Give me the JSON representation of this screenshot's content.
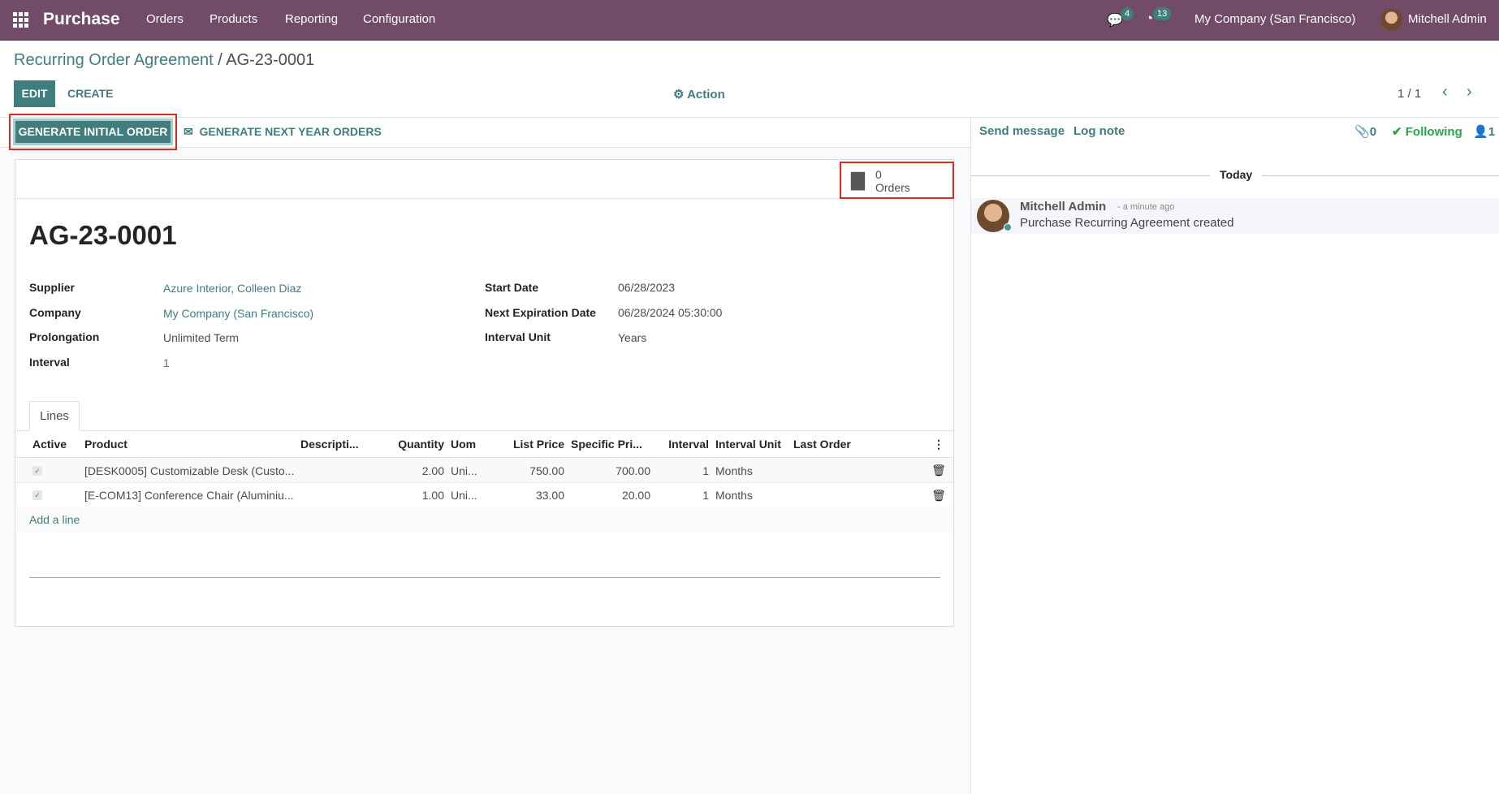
{
  "navbar": {
    "app": "Purchase",
    "menu": [
      "Orders",
      "Products",
      "Reporting",
      "Configuration"
    ],
    "messages_count": "4",
    "activities_count": "13",
    "company": "My Company (San Francisco)",
    "user": "Mitchell Admin"
  },
  "breadcrumb": {
    "parent": "Recurring Order Agreement",
    "separator": " / ",
    "current": "AG-23-0001"
  },
  "control": {
    "edit": "Edit",
    "create": "Create",
    "action": "Action",
    "pager": "1 / 1"
  },
  "statusbar": {
    "generate_initial": "Generate Initial Order",
    "generate_next": "Generate Next Year Orders"
  },
  "stat": {
    "count": "0",
    "label": "Orders"
  },
  "form": {
    "title": "AG-23-0001",
    "left": [
      {
        "label": "Supplier",
        "value": "Azure Interior, Colleen Diaz"
      },
      {
        "label": "Company",
        "value": "My Company (San Francisco)"
      },
      {
        "label": "Prolongation",
        "value": "Unlimited Term"
      },
      {
        "label": "Interval",
        "value": "1"
      }
    ],
    "right": [
      {
        "label": "Start Date",
        "value": "06/28/2023"
      },
      {
        "label": "Next Expiration Date",
        "value": "06/28/2024 05:30:00"
      },
      {
        "label": "Interval Unit",
        "value": "Years"
      }
    ],
    "tab": "Lines",
    "columns": [
      "Active",
      "Product",
      "Descripti...",
      "Quantity",
      "Uom",
      "List Price",
      "Specific Pri...",
      "Interval",
      "Interval Unit",
      "Last Order"
    ],
    "lines": [
      {
        "active": true,
        "product": "[DESK0005] Customizable Desk (Custo...",
        "description": "",
        "quantity": "2.00",
        "uom": "Uni...",
        "list_price": "750.00",
        "specific_price": "700.00",
        "interval": "1",
        "interval_unit": "Months",
        "last_order": ""
      },
      {
        "active": true,
        "product": "[E-COM13] Conference Chair (Aluminiu...",
        "description": "",
        "quantity": "1.00",
        "uom": "Uni...",
        "list_price": "33.00",
        "specific_price": "20.00",
        "interval": "1",
        "interval_unit": "Months",
        "last_order": ""
      }
    ],
    "add_line": "Add a line"
  },
  "chatter": {
    "send": "Send message",
    "log": "Log note",
    "attachments": "0",
    "following": "Following",
    "followers": "1",
    "date": "Today",
    "message": {
      "author": "Mitchell Admin",
      "time": "- a minute ago",
      "body": "Purchase Recurring Agreement created"
    }
  },
  "colors": {
    "brand": "#714b67",
    "primary": "#3f7d7f",
    "highlight": "#e0281c",
    "following": "#28a745"
  }
}
